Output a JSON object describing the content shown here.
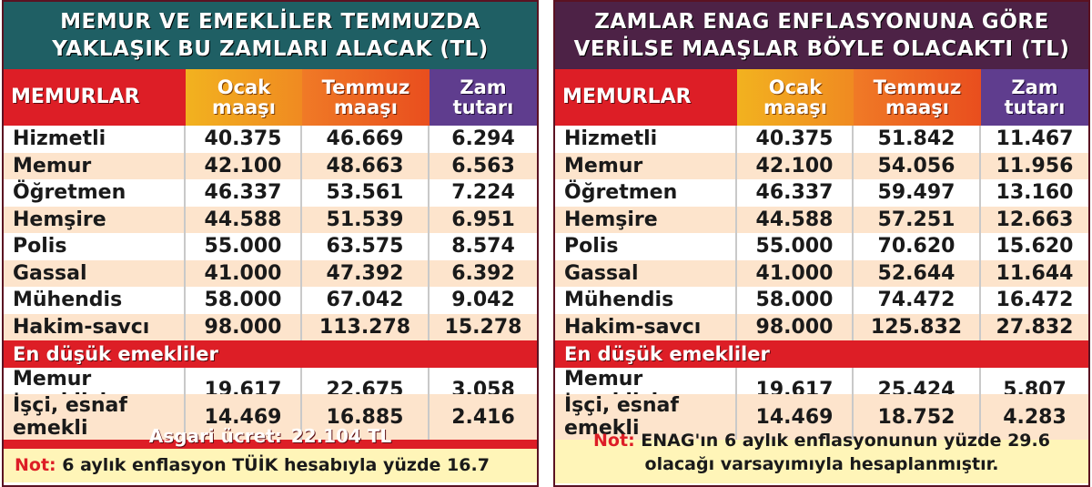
{
  "left": {
    "title_line1": "MEMUR VE EMEKLİLER TEMMUZDA",
    "title_line2": "YAKLAŞIK BU ZAMLARI ALACAK (TL)",
    "headers": {
      "label": "MEMURLAR",
      "ocak_1": "Ocak",
      "ocak_2": "maaşı",
      "temmuz_1": "Temmuz",
      "temmuz_2": "maaşı",
      "zam_1": "Zam",
      "zam_2": "tutarı"
    },
    "rows": [
      {
        "name": "Hizmetli",
        "ocak": "40.375",
        "temmuz": "46.669",
        "zam": "6.294"
      },
      {
        "name": "Memur",
        "ocak": "42.100",
        "temmuz": "48.663",
        "zam": "6.563"
      },
      {
        "name": "Öğretmen",
        "ocak": "46.337",
        "temmuz": "53.561",
        "zam": "7.224"
      },
      {
        "name": "Hemşire",
        "ocak": "44.588",
        "temmuz": "51.539",
        "zam": "6.951"
      },
      {
        "name": "Polis",
        "ocak": "55.000",
        "temmuz": "63.575",
        "zam": "8.574"
      },
      {
        "name": "Gassal",
        "ocak": "41.000",
        "temmuz": "47.392",
        "zam": "6.392"
      },
      {
        "name": "Mühendis",
        "ocak": "58.000",
        "temmuz": "67.042",
        "zam": "9.042"
      },
      {
        "name": "Hakim-savcı",
        "ocak": "98.000",
        "temmuz": "113.278",
        "zam": "15.278"
      }
    ],
    "section_label": "En düşük emekliler",
    "retiree_rows": [
      {
        "name": "Memur emeklisi",
        "ocak": "19.617",
        "temmuz": "22.675",
        "zam": "3.058"
      },
      {
        "name": "İşçi, esnaf emekli",
        "ocak": "14.469",
        "temmuz": "16.885",
        "zam": "2.416"
      }
    ],
    "asgari_label": "Asgari ücret:",
    "asgari_value": "22.104 TL",
    "note_label": "Not:",
    "note_text": "6 aylık enflasyon TÜİK hesabıyla yüzde 16.7"
  },
  "right": {
    "title_line1": "ZAMLAR ENAG ENFLASYONUNA GÖRE",
    "title_line2": "VERİLSE MAAŞLAR BÖYLE OLACAKTI (TL)",
    "headers": {
      "label": "MEMURLAR",
      "ocak_1": "Ocak",
      "ocak_2": "maaşı",
      "temmuz_1": "Temmuz",
      "temmuz_2": "maaşı",
      "zam_1": "Zam",
      "zam_2": "tutarı"
    },
    "rows": [
      {
        "name": "Hizmetli",
        "ocak": "40.375",
        "temmuz": "51.842",
        "zam": "11.467"
      },
      {
        "name": "Memur",
        "ocak": "42.100",
        "temmuz": "54.056",
        "zam": "11.956"
      },
      {
        "name": "Öğretmen",
        "ocak": "46.337",
        "temmuz": "59.497",
        "zam": "13.160"
      },
      {
        "name": "Hemşire",
        "ocak": "44.588",
        "temmuz": "57.251",
        "zam": "12.663"
      },
      {
        "name": "Polis",
        "ocak": "55.000",
        "temmuz": "70.620",
        "zam": "15.620"
      },
      {
        "name": "Gassal",
        "ocak": "41.000",
        "temmuz": "52.644",
        "zam": "11.644"
      },
      {
        "name": "Mühendis",
        "ocak": "58.000",
        "temmuz": "74.472",
        "zam": "16.472"
      },
      {
        "name": "Hakim-savcı",
        "ocak": "98.000",
        "temmuz": "125.832",
        "zam": "27.832"
      }
    ],
    "section_label": "En düşük emekliler",
    "retiree_rows": [
      {
        "name": "Memur emeklisi",
        "ocak": "19.617",
        "temmuz": "25.424",
        "zam": "5.807"
      },
      {
        "name": "İşçi, esnaf emekli",
        "ocak": "14.469",
        "temmuz": "18.752",
        "zam": "4.283"
      }
    ],
    "note_label": "Not:",
    "note_text_line1": "ENAG'ın 6 aylık enflasyonunun yüzde 29.6",
    "note_text_line2": "olacağı varsayımıyla hesaplanmıştır."
  }
}
